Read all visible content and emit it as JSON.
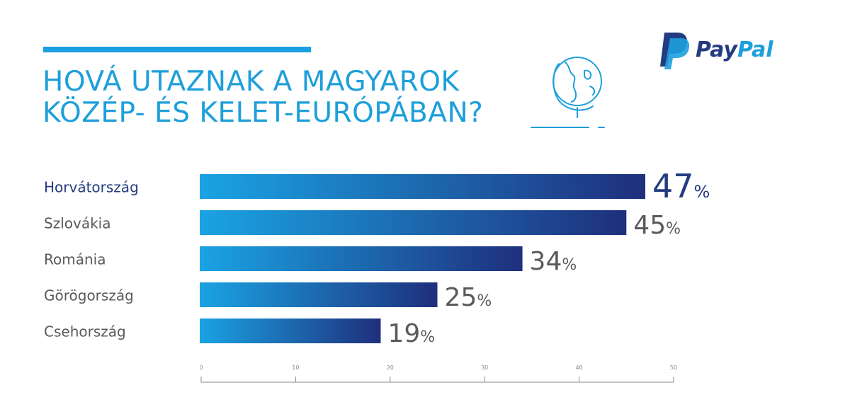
{
  "title": {
    "line1": "HOVÁ UTAZNAK A MAGYAROK",
    "line2": "KÖZÉP- ÉS KELET-EURÓPÁBAN?"
  },
  "brand": {
    "name_part1": "Pay",
    "name_part2": "Pal",
    "colors": {
      "dark": "#233b80",
      "light": "#1d9fdb"
    }
  },
  "icons": [
    "globe-icon",
    "paypal-logo-icon"
  ],
  "chart_data": {
    "type": "bar",
    "orientation": "horizontal",
    "categories": [
      "Horvátország",
      "Szlovákia",
      "Románia",
      "Görögország",
      "Csehország"
    ],
    "values": [
      47,
      45,
      34,
      25,
      19
    ],
    "value_suffix": "%",
    "xlim": [
      0,
      50
    ],
    "xticks": [
      0,
      10,
      20,
      30,
      40,
      50
    ],
    "grid": false,
    "legend": "none",
    "colors": {
      "bar_start": "#1aa3e3",
      "bar_end": "#1f2f7c",
      "highlight_label": "#233b80",
      "label": "#5a5a5a",
      "axis": "#8a8a8a"
    }
  }
}
